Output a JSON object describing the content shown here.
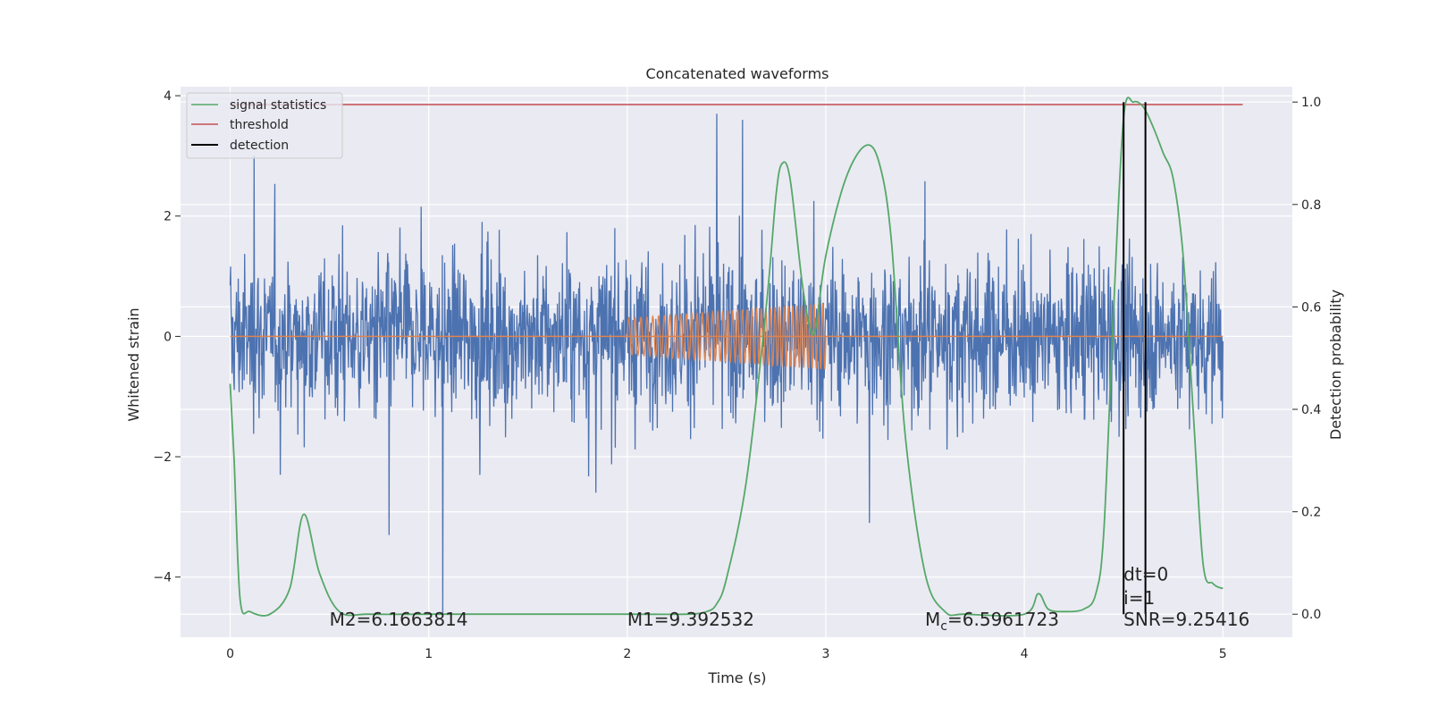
{
  "chart_data": {
    "type": "line",
    "title": "Concatenated waveforms",
    "xlabel": "Time (s)",
    "ylabel": "Whitened strain",
    "ylabel_right": "Detection probability",
    "xlim": [
      -0.25,
      5.35
    ],
    "ylim": [
      -5.0,
      4.15
    ],
    "ylim_right": [
      -0.045,
      1.03
    ],
    "x_ticks": [
      0,
      1,
      2,
      3,
      4,
      5
    ],
    "x_tick_labels": [
      "0",
      "1",
      "2",
      "3",
      "4",
      "5"
    ],
    "y_ticks": [
      -4,
      -2,
      0,
      2,
      4
    ],
    "y_tick_labels": [
      "−4",
      "−2",
      "0",
      "2",
      "4"
    ],
    "y_right_ticks": [
      0.0,
      0.2,
      0.4,
      0.6,
      0.8,
      1.0
    ],
    "y_right_tick_labels": [
      "0.0",
      "0.2",
      "0.4",
      "0.6",
      "0.8",
      "1.0"
    ],
    "grid": true,
    "legend_position": "upper-left",
    "colors": {
      "strain": "#4c72b0",
      "template": "#dd8452",
      "signal_statistics": "#55a868",
      "threshold": "#c44e52",
      "detection": "#000000",
      "plot_bg": "#eaeaf2",
      "grid": "#ffffff"
    },
    "legend": [
      {
        "name": "signal statistics",
        "color": "#55a868"
      },
      {
        "name": "threshold",
        "color": "#c44e52"
      },
      {
        "name": "detection",
        "color": "#000000"
      }
    ],
    "strain": {
      "x_range": [
        0,
        5
      ],
      "typical_range": [
        -2.0,
        2.0
      ],
      "notable_spikes": [
        {
          "x": 0.12,
          "y": 3.0
        },
        {
          "x": 0.8,
          "y": -3.3
        },
        {
          "x": 1.07,
          "y": -4.65
        },
        {
          "x": 2.45,
          "y": 3.7
        },
        {
          "x": 2.58,
          "y": 3.6
        },
        {
          "x": 3.22,
          "y": -3.1
        },
        {
          "x": 4.5,
          "y": 3.0
        }
      ]
    },
    "template": {
      "x_range": [
        2.0,
        3.0
      ],
      "amplitude_start": 0.3,
      "amplitude_end": 0.55,
      "cycles": 40
    },
    "signal_statistics": {
      "x": [
        0.0,
        0.02,
        0.05,
        0.1,
        0.2,
        0.3,
        0.37,
        0.45,
        0.55,
        0.7,
        1.0,
        1.5,
        2.0,
        2.3,
        2.4,
        2.45,
        2.5,
        2.6,
        2.7,
        2.75,
        2.78,
        2.82,
        2.88,
        2.92,
        2.95,
        3.0,
        3.1,
        3.2,
        3.27,
        3.33,
        3.4,
        3.5,
        3.6,
        3.7,
        4.0,
        4.07,
        4.12,
        4.2,
        4.3,
        4.36,
        4.4,
        4.45,
        4.5,
        4.55,
        4.6,
        4.65,
        4.7,
        4.75,
        4.8,
        4.85,
        4.9,
        4.95,
        5.0
      ],
      "y": [
        0.45,
        0.3,
        0.03,
        0.005,
        0.0,
        0.05,
        0.195,
        0.08,
        0.005,
        0.0,
        0.0,
        0.0,
        0.0,
        0.0,
        0.005,
        0.02,
        0.07,
        0.26,
        0.6,
        0.82,
        0.88,
        0.85,
        0.65,
        0.56,
        0.56,
        0.7,
        0.85,
        0.915,
        0.88,
        0.73,
        0.35,
        0.08,
        0.005,
        0.0,
        0.0,
        0.04,
        0.01,
        0.005,
        0.01,
        0.04,
        0.16,
        0.6,
        0.97,
        1.0,
        0.99,
        0.95,
        0.9,
        0.85,
        0.7,
        0.4,
        0.1,
        0.06,
        0.05
      ]
    },
    "threshold": {
      "x": [
        0.0,
        5.1
      ],
      "y": 0.995
    },
    "detections": [
      4.5,
      4.61
    ],
    "detection_ylim": [
      0.0,
      1.0
    ],
    "annotations": [
      {
        "x": 0.5,
        "y": -4.7,
        "text": "M2=6.1663814",
        "anchor": "start"
      },
      {
        "x": 2.0,
        "y": -4.7,
        "text": "M1=9.392532",
        "anchor": "start"
      },
      {
        "x": 3.5,
        "y": -4.7,
        "text_main": "M",
        "text_sub": "c",
        "text_rest": "=6.5961723",
        "anchor": "start"
      },
      {
        "x": 4.5,
        "y": -3.95,
        "text": "dt=0",
        "anchor": "start"
      },
      {
        "x": 4.5,
        "y": -4.35,
        "text": "i=1",
        "anchor": "start"
      },
      {
        "x": 4.5,
        "y": -4.7,
        "text": "SNR=9.25416",
        "anchor": "start"
      }
    ]
  }
}
